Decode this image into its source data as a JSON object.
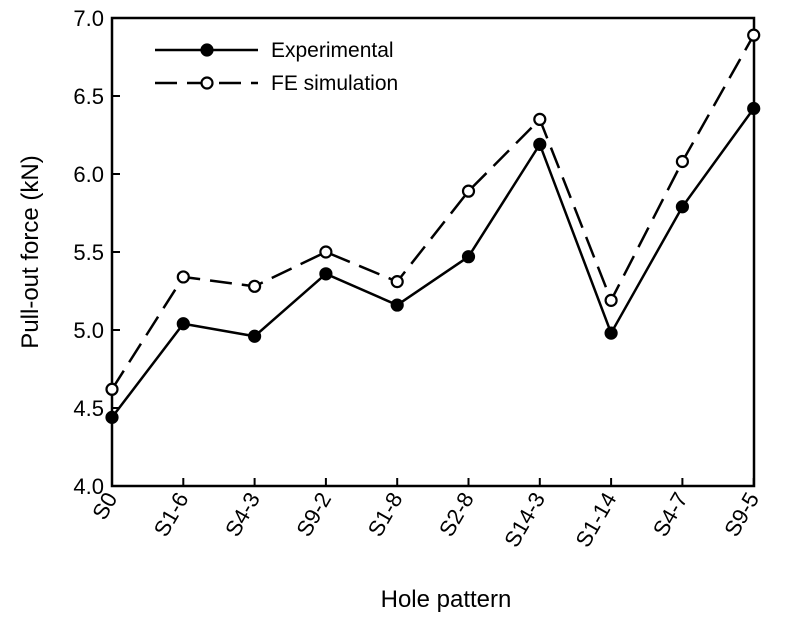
{
  "chart_data": {
    "type": "line",
    "title": "",
    "xlabel": "Hole pattern",
    "ylabel": "Pull-out force (kN)",
    "categories": [
      "S0",
      "S1-6",
      "S4-3",
      "S9-2",
      "S1-8",
      "S2-8",
      "S14-3",
      "S1-14",
      "S4-7",
      "S9-5"
    ],
    "ylim": [
      4.0,
      7.0
    ],
    "yticks": [
      "4.0",
      "4.5",
      "5.0",
      "5.5",
      "6.0",
      "6.5",
      "7.0"
    ],
    "grid": false,
    "legend_position": "top-left",
    "series": [
      {
        "name": "Experimental",
        "line_style": "solid",
        "marker": "filled-circle",
        "color": "#000000",
        "values": [
          4.44,
          5.04,
          4.96,
          5.36,
          5.16,
          5.47,
          6.19,
          4.98,
          5.79,
          6.42
        ]
      },
      {
        "name": "FE simulation",
        "line_style": "dashed",
        "marker": "open-circle",
        "color": "#000000",
        "values": [
          4.62,
          5.34,
          5.28,
          5.5,
          5.31,
          5.89,
          6.35,
          5.19,
          6.08,
          6.89
        ]
      }
    ]
  }
}
